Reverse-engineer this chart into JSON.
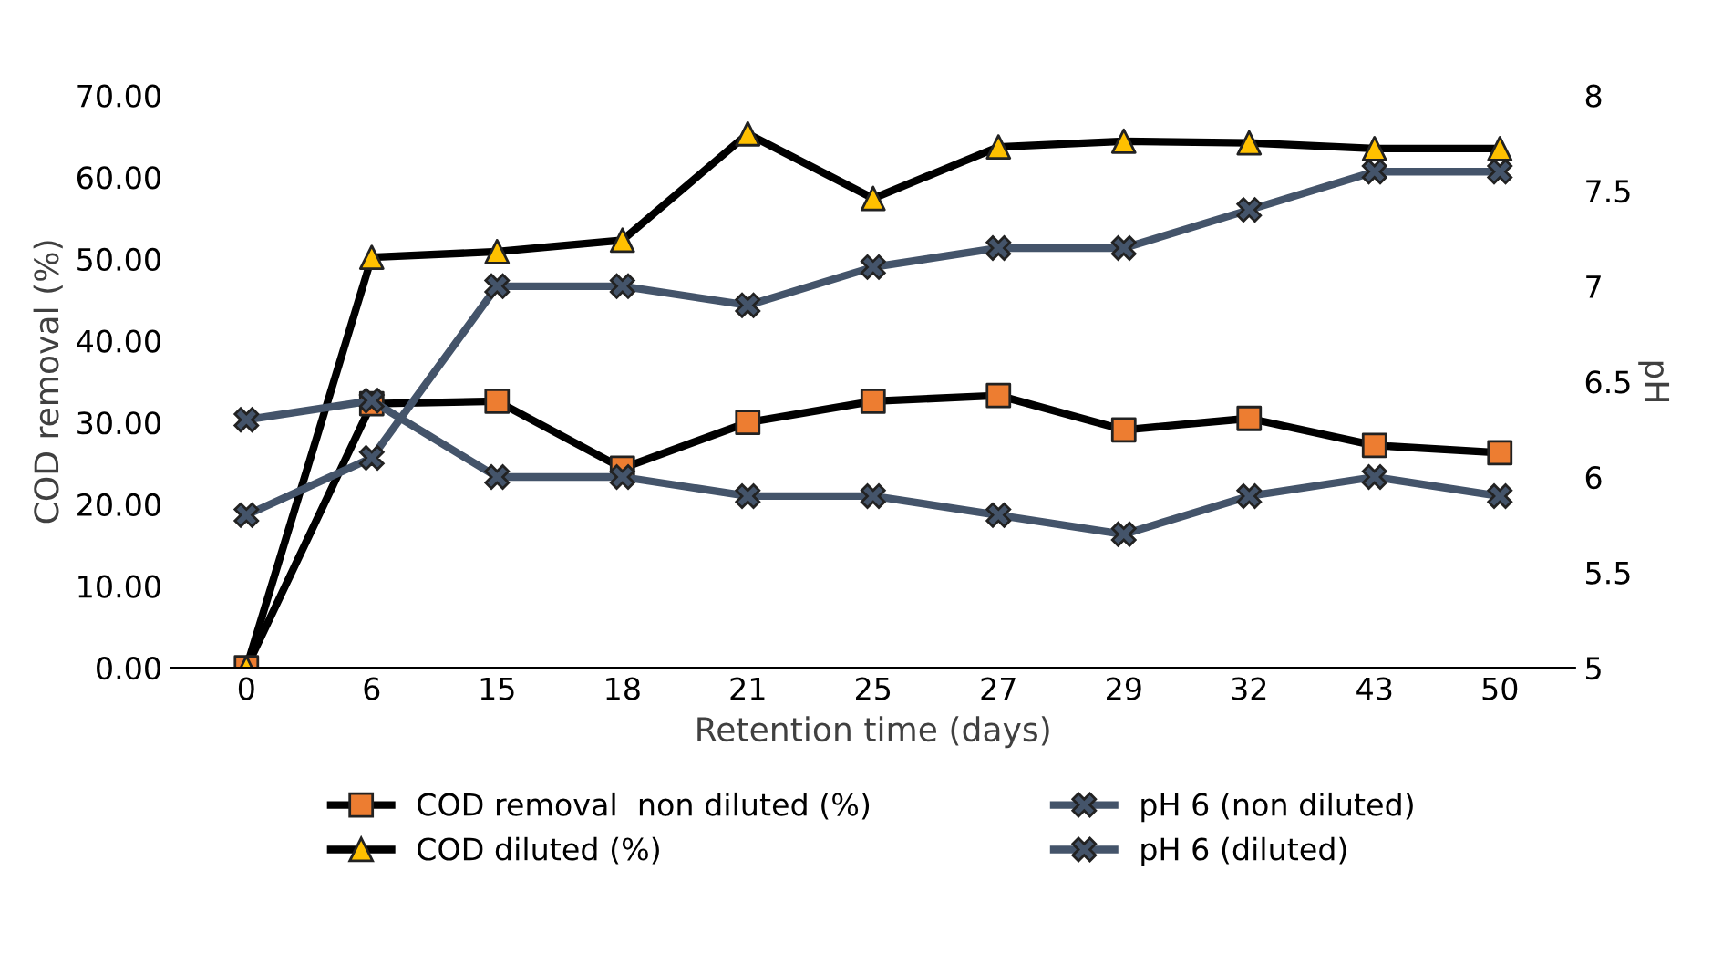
{
  "chart_data": {
    "type": "line",
    "xlabel": "Retention time (days)",
    "ylabel": "COD removal (%)",
    "y2label": "pH",
    "categories": [
      "0",
      "6",
      "15",
      "18",
      "21",
      "25",
      "27",
      "29",
      "32",
      "43",
      "50"
    ],
    "series": [
      {
        "name": "COD removal  non diluted (%)",
        "color": "#000000",
        "colors": [
          "#ed7d31",
          "#ed7d31",
          "#ed7d31",
          "#ed7d31",
          "#ed7d31",
          "#ed7d31",
          "#ed7d31",
          "#ed7d31",
          "#ed7d31",
          "#ed7d31",
          "#ed7d31"
        ],
        "marker": "square",
        "values": [
          0,
          32.3,
          32.6,
          24.4,
          30.0,
          32.6,
          33.3,
          29.1,
          30.5,
          27.2,
          26.3
        ]
      },
      {
        "name": "COD diluted (%)",
        "color": "#000000",
        "colors": [
          "#ffc000",
          "#ffc000",
          "#ffc000",
          "#ffc000",
          "#ffc000",
          "#ffc000",
          "#ffc000",
          "#ffc000",
          "#ffc000",
          "#ffc000",
          "#ffc000"
        ],
        "marker": "triangle",
        "values": [
          0,
          50.2,
          50.9,
          52.3,
          65.3,
          57.4,
          63.7,
          64.4,
          64.2,
          63.5,
          63.5
        ]
      },
      {
        "name": "pH 6 (non diluted)",
        "color": "#44546a",
        "marker": "cross",
        "axis": "y2",
        "values": [
          6.3,
          6.4,
          6.0,
          6.0,
          5.9,
          5.9,
          5.8,
          5.7,
          5.9,
          6.0,
          5.9
        ]
      },
      {
        "name": "pH 6 (diluted)",
        "color": "#44546a",
        "marker": "cross",
        "axis": "y2",
        "values": [
          5.8,
          6.1,
          7.0,
          7.0,
          6.9,
          7.1,
          7.2,
          7.2,
          7.4,
          7.6,
          7.6
        ]
      }
    ],
    "ylim": [
      0,
      70
    ],
    "yticks": [
      {
        "value": 0,
        "label": "0.00"
      },
      {
        "value": 10,
        "label": "10.00"
      },
      {
        "value": 20,
        "label": "20.00"
      },
      {
        "value": 30,
        "label": "30.00"
      },
      {
        "value": 40,
        "label": "40.00"
      },
      {
        "value": 50,
        "label": "50.00"
      },
      {
        "value": 60,
        "label": "60.00"
      },
      {
        "value": 70,
        "label": "70.00"
      }
    ],
    "y2lim": [
      5,
      8
    ],
    "y2ticks": [
      5,
      5.5,
      6,
      6.5,
      7,
      7.5,
      8
    ],
    "grid": false,
    "legend": "bottom",
    "line_style": "solid"
  }
}
